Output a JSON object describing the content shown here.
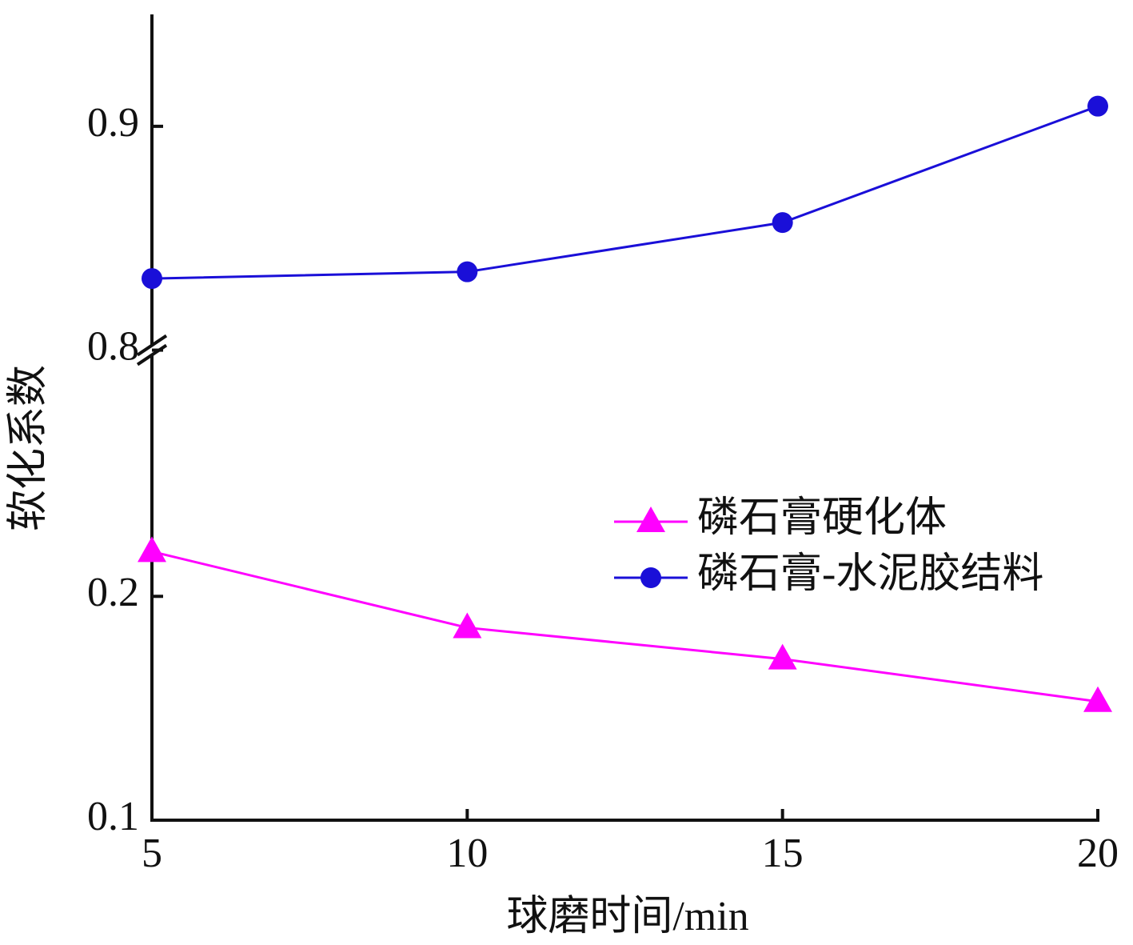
{
  "chart_data": {
    "type": "line",
    "x_label": "球磨时间/min",
    "y_label": "软化系数",
    "x": [
      5,
      10,
      15,
      20
    ],
    "xlim": [
      5,
      20
    ],
    "xticks": [
      5,
      10,
      15,
      20
    ],
    "ylim": [
      0.1,
      0.95
    ],
    "ybreak": [
      0.31,
      0.8
    ],
    "yticks": [
      0.1,
      0.2,
      0.8,
      0.9
    ],
    "legend": "right",
    "series": [
      {
        "name": "磷石膏硬化体",
        "color": "#ff00ff",
        "marker": "triangle",
        "values": [
          0.22,
          0.186,
          0.172,
          0.153
        ]
      },
      {
        "name": "磷石膏-水泥胶结料",
        "color": "#1a0fd8",
        "marker": "circle",
        "values": [
          0.832,
          0.835,
          0.857,
          0.909
        ]
      }
    ]
  }
}
